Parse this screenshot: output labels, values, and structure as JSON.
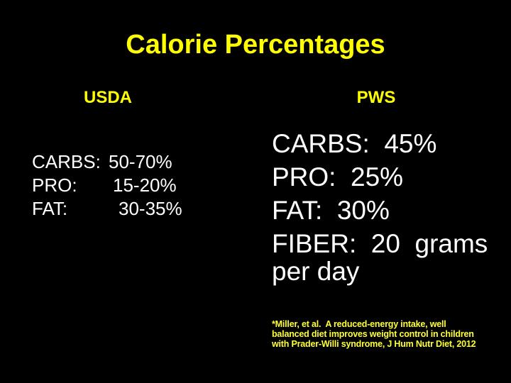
{
  "slide": {
    "title": "Calorie Percentages",
    "colors": {
      "background": "#000000",
      "title_yellow": "#FFFF00",
      "heading_yellow": "#FFFF00",
      "body_white": "#FFFFFF",
      "citation_yellow": "#FFFF38"
    },
    "columns": {
      "usda": {
        "heading": "USDA",
        "rows": [
          {
            "label": "CARBS:",
            "value": "50-70%"
          },
          {
            "label": "PRO:",
            "value": "15-20%"
          },
          {
            "label": "FAT:",
            "value": "30-35%"
          }
        ]
      },
      "pws": {
        "heading": "PWS",
        "lines": [
          "CARBS:  45%",
          "PRO:  25%",
          "FAT:  30%",
          "FIBER:  20  grams",
          "per day"
        ]
      }
    },
    "citation": {
      "lines": [
        "*Miller, et al.  A reduced-energy intake, well",
        "balanced diet improves weight control in children",
        "with Prader-Willi syndrome, J Hum Nutr Diet, 2012"
      ]
    }
  }
}
